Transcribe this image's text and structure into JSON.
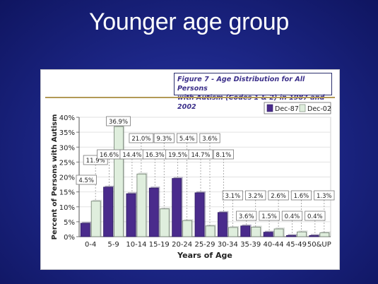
{
  "slide": {
    "title": "Younger age group"
  },
  "figure": {
    "header_line1": "Figure 7 - Age Distribution for All Persons",
    "header_line2": "with Autism (Codes 1 & 2) in 1987 and 2002"
  },
  "chart_data": {
    "type": "bar",
    "xlabel": "Years of Age",
    "ylabel": "Percent of Persons with Autism",
    "ylim": [
      0,
      40
    ],
    "yticks": [
      "0%",
      "5%",
      "10%",
      "15%",
      "20%",
      "25%",
      "30%",
      "35%",
      "40%"
    ],
    "categories": [
      "0-4",
      "5-9",
      "10-14",
      "15-19",
      "20-24",
      "25-29",
      "30-34",
      "35-39",
      "40-44",
      "45-49",
      "50&UP"
    ],
    "legend_position": "top-right",
    "series": [
      {
        "name": "Dec-87",
        "color": "#4a2b8c",
        "values": [
          4.5,
          16.6,
          14.4,
          16.3,
          19.5,
          14.7,
          8.1,
          3.6,
          1.5,
          0.4,
          0.4
        ],
        "labels": [
          "4.5%",
          "16.6%",
          "14.4%",
          "16.3%",
          "19.5%",
          "14.7%",
          "8.1%",
          "3.6%",
          "1.5%",
          "0.4%",
          "0.4%"
        ]
      },
      {
        "name": "Dec-02",
        "color": "#dfeedd",
        "values": [
          11.9,
          36.9,
          21.0,
          9.3,
          5.4,
          3.6,
          3.1,
          3.2,
          2.6,
          1.6,
          1.3
        ],
        "labels": [
          "11.9%",
          "36.9%",
          "21.0%",
          "9.3%",
          "5.4%",
          "3.6%",
          "3.1%",
          "3.2%",
          "2.6%",
          "1.6%",
          "1.3%"
        ]
      }
    ]
  }
}
